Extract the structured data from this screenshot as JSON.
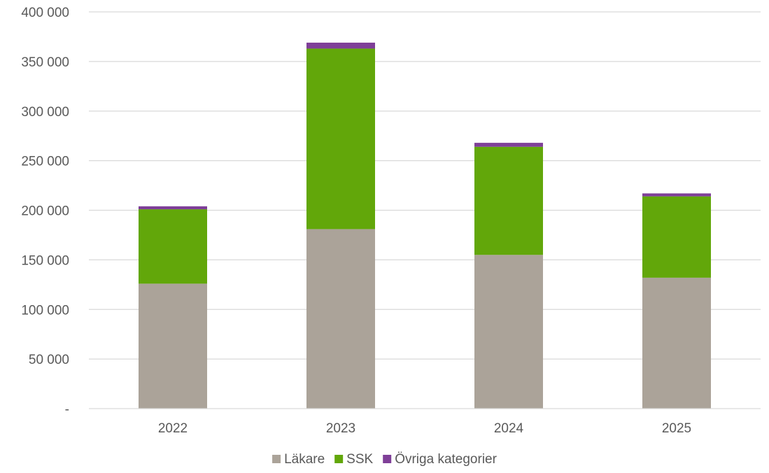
{
  "chart_data": {
    "type": "bar",
    "stacked": true,
    "categories": [
      "2022",
      "2023",
      "2024",
      "2025"
    ],
    "series": [
      {
        "name": "Läkare",
        "color": "#aba399",
        "values": [
          126000,
          181000,
          155000,
          132000
        ]
      },
      {
        "name": "SSK",
        "color": "#62a70a",
        "values": [
          75000,
          182000,
          109000,
          82000
        ]
      },
      {
        "name": "Övriga kategorier",
        "color": "#7f3f98",
        "values": [
          3000,
          6000,
          4000,
          3000
        ]
      }
    ],
    "ylim": [
      0,
      400000
    ],
    "yticks": [
      {
        "value": 0,
        "label": "-"
      },
      {
        "value": 50000,
        "label": "50 000"
      },
      {
        "value": 100000,
        "label": "100 000"
      },
      {
        "value": 150000,
        "label": "150 000"
      },
      {
        "value": 200000,
        "label": "200 000"
      },
      {
        "value": 250000,
        "label": "250 000"
      },
      {
        "value": 300000,
        "label": "300 000"
      },
      {
        "value": 350000,
        "label": "350 000"
      },
      {
        "value": 400000,
        "label": "400 000"
      }
    ],
    "grid": true,
    "legend_position": "bottom"
  }
}
